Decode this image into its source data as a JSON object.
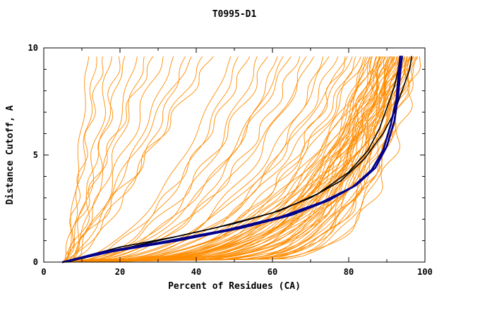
{
  "chart_data": {
    "type": "line",
    "title": "T0995-D1",
    "xlabel": "Percent of Residues (CA)",
    "ylabel": "Distance Cutoff, A",
    "xlim": [
      0,
      100
    ],
    "ylim": [
      0,
      10
    ],
    "grid": false,
    "legend_position": "none",
    "x_ticks": {
      "major": [
        0,
        20,
        40,
        60,
        80,
        100
      ],
      "minor": [
        10,
        30,
        50,
        70,
        90
      ]
    },
    "y_ticks": {
      "major": [
        0,
        5,
        10
      ],
      "minor": [
        1,
        2,
        3,
        4,
        6,
        7,
        8,
        9
      ]
    },
    "colors": {
      "ensemble": "#ff8c00",
      "highlight_black": "#000000",
      "highlight_blue": "#00008b",
      "frame": "#000000"
    },
    "curve_top_y": 9.6,
    "ensemble_model": {
      "formula": "x = x0 + (p_top - x0) * (y / 10)^k",
      "curves": [
        [
          12,
          0.9,
          6
        ],
        [
          14,
          0.7,
          5
        ],
        [
          16,
          1.1,
          6
        ],
        [
          18,
          0.8,
          7
        ],
        [
          20,
          0.6,
          5
        ],
        [
          22,
          1.0,
          6
        ],
        [
          25,
          0.85,
          7
        ],
        [
          27,
          0.7,
          5
        ],
        [
          30,
          1.2,
          6
        ],
        [
          32,
          0.9,
          8
        ],
        [
          35,
          0.75,
          6
        ],
        [
          38,
          0.6,
          5
        ],
        [
          40,
          1.0,
          7
        ],
        [
          43,
          0.8,
          6
        ],
        [
          46,
          0.9,
          5
        ],
        [
          50,
          0.5,
          5
        ],
        [
          52,
          0.45,
          6
        ],
        [
          55,
          0.55,
          7
        ],
        [
          57,
          0.4,
          5
        ],
        [
          60,
          0.5,
          6
        ],
        [
          62,
          0.35,
          5
        ],
        [
          64,
          0.45,
          6
        ],
        [
          66,
          0.5,
          7
        ],
        [
          68,
          0.4,
          5
        ],
        [
          70,
          0.35,
          6
        ],
        [
          72,
          0.45,
          5
        ],
        [
          74,
          0.3,
          6
        ],
        [
          76,
          0.4,
          7
        ],
        [
          78,
          0.35,
          5
        ],
        [
          80,
          0.3,
          6
        ],
        [
          81,
          0.42,
          5
        ],
        [
          82,
          0.38,
          6
        ],
        [
          83,
          0.33,
          7
        ],
        [
          84,
          0.3,
          5
        ],
        [
          85,
          0.36,
          6
        ],
        [
          86,
          0.28,
          5
        ],
        [
          86,
          0.2,
          6
        ],
        [
          87,
          0.25,
          5
        ],
        [
          87,
          0.18,
          7
        ],
        [
          88,
          0.3,
          5
        ],
        [
          88,
          0.22,
          6
        ],
        [
          88,
          0.15,
          5
        ],
        [
          89,
          0.27,
          6
        ],
        [
          89,
          0.2,
          5
        ],
        [
          89,
          0.14,
          7
        ],
        [
          90,
          0.3,
          5
        ],
        [
          90,
          0.24,
          6
        ],
        [
          90,
          0.18,
          5
        ],
        [
          90,
          0.12,
          6
        ],
        [
          91,
          0.28,
          5
        ],
        [
          91,
          0.22,
          7
        ],
        [
          91,
          0.16,
          5
        ],
        [
          92,
          0.3,
          6
        ],
        [
          92,
          0.25,
          5
        ],
        [
          92,
          0.2,
          6
        ],
        [
          92,
          0.14,
          5
        ],
        [
          93,
          0.28,
          7
        ],
        [
          93,
          0.22,
          5
        ],
        [
          93,
          0.17,
          6
        ],
        [
          93,
          0.12,
          5
        ],
        [
          94,
          0.3,
          6
        ],
        [
          94,
          0.24,
          5
        ],
        [
          94,
          0.19,
          6
        ],
        [
          94,
          0.13,
          7
        ],
        [
          95,
          0.27,
          5
        ],
        [
          95,
          0.21,
          6
        ],
        [
          95,
          0.15,
          5
        ],
        [
          95,
          0.1,
          6
        ],
        [
          96,
          0.29,
          5
        ],
        [
          96,
          0.23,
          6
        ],
        [
          96,
          0.18,
          5
        ],
        [
          96,
          0.12,
          7
        ],
        [
          97,
          0.26,
          5
        ],
        [
          97,
          0.2,
          6
        ],
        [
          97,
          0.14,
          5
        ],
        [
          98,
          0.28,
          6
        ],
        [
          98,
          0.21,
          5
        ],
        [
          98,
          0.15,
          6
        ],
        [
          99,
          0.25,
          5
        ],
        [
          99,
          0.18,
          6
        ],
        [
          85,
          0.2,
          5
        ],
        [
          86,
          0.12,
          6
        ],
        [
          87,
          0.32,
          5
        ],
        [
          88,
          0.1,
          6
        ],
        [
          90,
          0.35,
          5
        ],
        [
          91,
          0.1,
          6
        ],
        [
          93,
          0.35,
          5
        ],
        [
          95,
          0.33,
          6
        ],
        [
          97,
          0.32,
          5
        ],
        [
          99,
          0.12,
          6
        ]
      ]
    },
    "black_curves": [
      [
        [
          5,
          0
        ],
        [
          20,
          0.7
        ],
        [
          35,
          1.2
        ],
        [
          50,
          1.8
        ],
        [
          62,
          2.4
        ],
        [
          72,
          3.2
        ],
        [
          80,
          4.2
        ],
        [
          85,
          5.2
        ],
        [
          88,
          6.2
        ],
        [
          90,
          7.2
        ],
        [
          92,
          8.2
        ],
        [
          93,
          9.0
        ],
        [
          93.5,
          9.6
        ]
      ],
      [
        [
          6,
          0
        ],
        [
          25,
          0.8
        ],
        [
          45,
          1.6
        ],
        [
          60,
          2.3
        ],
        [
          70,
          3.0
        ],
        [
          78,
          3.8
        ],
        [
          84,
          4.8
        ],
        [
          89,
          6.0
        ],
        [
          92,
          7.0
        ],
        [
          94,
          8.0
        ],
        [
          96,
          9.0
        ],
        [
          96.5,
          9.6
        ]
      ]
    ],
    "blue_curves": [
      [
        [
          5,
          0
        ],
        [
          18,
          0.5
        ],
        [
          35,
          1.0
        ],
        [
          52,
          1.6
        ],
        [
          65,
          2.2
        ],
        [
          75,
          2.9
        ],
        [
          82,
          3.6
        ],
        [
          87,
          4.4
        ],
        [
          90,
          5.4
        ],
        [
          92,
          6.6
        ],
        [
          93,
          7.8
        ],
        [
          93.5,
          8.8
        ],
        [
          94,
          9.6
        ]
      ],
      [
        [
          5,
          0
        ],
        [
          15,
          0.45
        ],
        [
          30,
          0.9
        ],
        [
          48,
          1.5
        ],
        [
          62,
          2.1
        ],
        [
          73,
          2.8
        ],
        [
          81,
          3.5
        ],
        [
          86,
          4.3
        ],
        [
          89,
          5.2
        ],
        [
          91,
          6.4
        ],
        [
          92.5,
          7.6
        ],
        [
          93,
          8.6
        ],
        [
          93.5,
          9.6
        ]
      ]
    ]
  }
}
